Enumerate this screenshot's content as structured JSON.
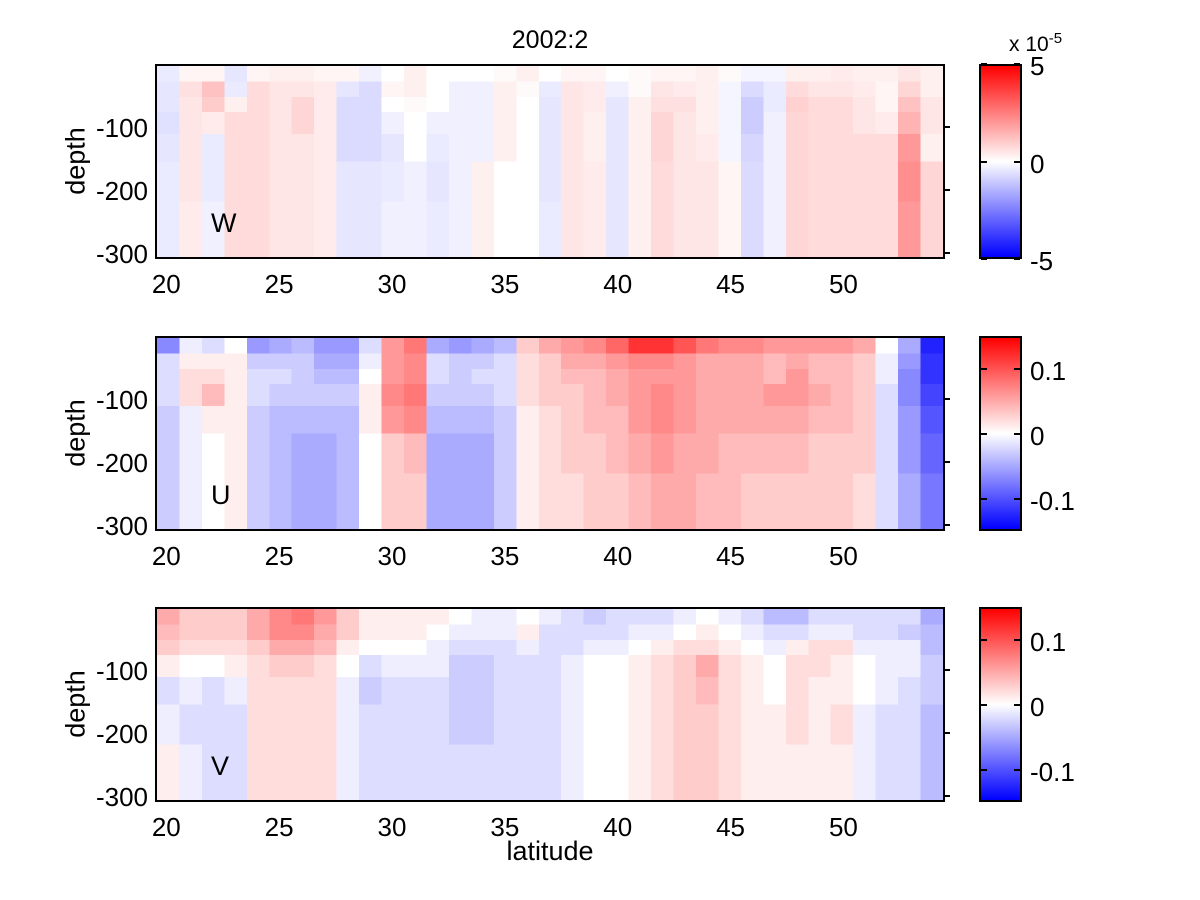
{
  "figure": {
    "title": "2002:2",
    "xlabel": "latitude",
    "ylabel": "depth",
    "background": "#ffffff",
    "axis_color": "#000000",
    "x_tick_labels": [
      "20",
      "25",
      "30",
      "35",
      "40",
      "45",
      "50"
    ],
    "x_tick_values": [
      20,
      25,
      30,
      35,
      40,
      45,
      50
    ],
    "y_tick_labels": [
      "-100",
      "-200",
      "-300"
    ],
    "y_tick_values": [
      -100,
      -200,
      -300
    ]
  },
  "colormap": {
    "max_color": "#ff0000",
    "mid_color": "#ffffff",
    "min_color": "#0000ff"
  },
  "chart_data": [
    {
      "type": "heatmap",
      "label": "W",
      "units_scale": "1e-5",
      "vmax": 5,
      "xlim": [
        19.5,
        54.5
      ],
      "ylim": [
        -310,
        0
      ],
      "lat": [
        20,
        21,
        22,
        23,
        24,
        25,
        26,
        27,
        28,
        29,
        30,
        31,
        32,
        33,
        34,
        35,
        36,
        37,
        38,
        39,
        40,
        41,
        42,
        43,
        44,
        45,
        46,
        47,
        48,
        49,
        50,
        51,
        52,
        53,
        54
      ],
      "depth_edges": [
        0,
        -25,
        -50,
        -75,
        -110,
        -155,
        -220,
        -310
      ],
      "colorbar": {
        "ticks": [
          {
            "label": "5",
            "value": 5
          },
          {
            "label": "0",
            "value": 0
          },
          {
            "label": "-5",
            "value": -5
          }
        ],
        "exponent_prefix": "x 10",
        "exponent_sup": "-5"
      },
      "columns_note": "columns[i] = values for lat[i], surface row first, units of 1e-5",
      "columns": [
        [
          -0.4,
          -0.5,
          -0.5,
          -0.6,
          -0.5,
          -0.4,
          -0.4
        ],
        [
          0.2,
          0.6,
          0.5,
          0.5,
          0.5,
          0.5,
          0.4
        ],
        [
          0.2,
          1.2,
          1.0,
          0.4,
          -0.4,
          -0.4,
          -0.3
        ],
        [
          -0.5,
          -0.4,
          0.3,
          0.7,
          0.7,
          0.7,
          0.7
        ],
        [
          0.2,
          0.7,
          0.7,
          0.7,
          0.7,
          0.7,
          0.7
        ],
        [
          0.3,
          0.5,
          0.5,
          0.5,
          0.5,
          0.5,
          0.5
        ],
        [
          0.3,
          0.5,
          0.8,
          0.8,
          0.5,
          0.5,
          0.5
        ],
        [
          0.2,
          0.4,
          0.4,
          0.4,
          0.4,
          0.4,
          0.4
        ],
        [
          0.2,
          -0.5,
          -0.7,
          -0.7,
          -0.7,
          -0.5,
          -0.5
        ],
        [
          -0.3,
          -0.7,
          -0.7,
          -0.7,
          -0.7,
          -0.5,
          -0.5
        ],
        [
          0.0,
          0.2,
          0.0,
          -0.3,
          -0.5,
          -0.4,
          -0.3
        ],
        [
          0.3,
          0.3,
          0.1,
          0.0,
          0.0,
          -0.3,
          -0.3
        ],
        [
          0.0,
          0.0,
          0.0,
          -0.3,
          -0.4,
          -0.5,
          -0.4
        ],
        [
          0.0,
          -0.3,
          -0.3,
          -0.3,
          -0.3,
          -0.3,
          -0.3
        ],
        [
          0.0,
          -0.3,
          -0.3,
          -0.3,
          -0.3,
          0.3,
          0.3
        ],
        [
          0.1,
          0.3,
          0.3,
          0.3,
          0.3,
          0.0,
          0.0
        ],
        [
          0.3,
          0.1,
          0.0,
          0.0,
          0.0,
          0.0,
          0.0
        ],
        [
          0.0,
          -0.4,
          -0.5,
          -0.5,
          -0.5,
          -0.5,
          -0.4
        ],
        [
          0.2,
          0.5,
          0.5,
          0.5,
          0.5,
          0.5,
          0.5
        ],
        [
          0.2,
          0.4,
          0.4,
          0.3,
          0.3,
          0.4,
          0.4
        ],
        [
          0.0,
          -0.3,
          -0.5,
          -0.5,
          -0.5,
          -0.5,
          -0.5
        ],
        [
          0.1,
          0.1,
          0.3,
          0.3,
          0.3,
          0.3,
          0.3
        ],
        [
          0.2,
          0.5,
          0.6,
          0.8,
          0.8,
          0.7,
          0.7
        ],
        [
          0.2,
          0.4,
          0.6,
          0.5,
          0.5,
          0.5,
          0.5
        ],
        [
          0.3,
          0.3,
          0.3,
          0.3,
          0.4,
          0.5,
          0.5
        ],
        [
          0.1,
          -0.2,
          -0.2,
          -0.2,
          -0.2,
          0.2,
          0.2
        ],
        [
          -0.2,
          -0.7,
          -1.0,
          -1.0,
          -0.8,
          -0.7,
          -0.7
        ],
        [
          -0.2,
          -0.4,
          -0.4,
          -0.3,
          -0.3,
          -0.3,
          -0.3
        ],
        [
          0.3,
          0.7,
          0.9,
          0.8,
          0.8,
          0.8,
          0.8
        ],
        [
          0.3,
          0.5,
          0.7,
          0.7,
          0.7,
          0.7,
          0.7
        ],
        [
          0.4,
          0.5,
          0.7,
          0.7,
          0.7,
          0.7,
          0.7
        ],
        [
          0.3,
          0.4,
          0.5,
          0.5,
          0.7,
          0.7,
          0.7
        ],
        [
          0.3,
          0.2,
          0.2,
          0.4,
          0.7,
          0.7,
          0.7
        ],
        [
          0.5,
          0.8,
          1.2,
          1.5,
          2.0,
          2.2,
          2.0
        ],
        [
          0.3,
          0.3,
          0.5,
          0.5,
          0.3,
          0.8,
          0.8
        ]
      ]
    },
    {
      "type": "heatmap",
      "label": "U",
      "units_scale": "1",
      "vmax": 0.15,
      "xlim": [
        19.5,
        54.5
      ],
      "ylim": [
        -310,
        0
      ],
      "lat": [
        20,
        21,
        22,
        23,
        24,
        25,
        26,
        27,
        28,
        29,
        30,
        31,
        32,
        33,
        34,
        35,
        36,
        37,
        38,
        39,
        40,
        41,
        42,
        43,
        44,
        45,
        46,
        47,
        48,
        49,
        50,
        51,
        52,
        53,
        54
      ],
      "depth_edges": [
        0,
        -25,
        -50,
        -75,
        -110,
        -155,
        -220,
        -310
      ],
      "colorbar": {
        "ticks": [
          {
            "label": "0.1",
            "value": 0.1
          },
          {
            "label": "0",
            "value": 0
          },
          {
            "label": "-0.1",
            "value": -0.1
          }
        ]
      },
      "columns_note": "columns[i] = values for lat[i], surface row first, m/s",
      "columns": [
        [
          -0.07,
          -0.02,
          -0.02,
          -0.02,
          -0.03,
          -0.03,
          -0.03
        ],
        [
          -0.01,
          0.01,
          0.02,
          0.02,
          -0.01,
          -0.01,
          -0.01
        ],
        [
          -0.02,
          0.01,
          0.02,
          0.04,
          0.01,
          0.0,
          0.0
        ],
        [
          0.0,
          0.01,
          0.01,
          0.01,
          0.01,
          0.01,
          0.01
        ],
        [
          -0.06,
          -0.03,
          -0.02,
          -0.02,
          -0.03,
          -0.03,
          -0.03
        ],
        [
          -0.05,
          -0.03,
          -0.02,
          -0.03,
          -0.04,
          -0.04,
          -0.04
        ],
        [
          -0.04,
          -0.03,
          -0.03,
          -0.03,
          -0.04,
          -0.05,
          -0.05
        ],
        [
          -0.06,
          -0.05,
          -0.04,
          -0.03,
          -0.04,
          -0.05,
          -0.05
        ],
        [
          -0.06,
          -0.05,
          -0.04,
          -0.03,
          -0.04,
          -0.04,
          -0.04
        ],
        [
          -0.02,
          -0.01,
          0.0,
          0.01,
          0.01,
          0.0,
          0.0
        ],
        [
          0.06,
          0.06,
          0.06,
          0.07,
          0.06,
          0.03,
          0.03
        ],
        [
          0.08,
          0.07,
          0.07,
          0.08,
          0.07,
          0.04,
          0.03
        ],
        [
          -0.05,
          -0.02,
          -0.02,
          -0.03,
          -0.04,
          -0.05,
          -0.05
        ],
        [
          -0.06,
          -0.03,
          -0.03,
          -0.03,
          -0.04,
          -0.05,
          -0.05
        ],
        [
          -0.05,
          -0.03,
          -0.02,
          -0.03,
          -0.04,
          -0.05,
          -0.05
        ],
        [
          -0.04,
          -0.02,
          -0.02,
          -0.02,
          -0.03,
          -0.03,
          -0.03
        ],
        [
          0.03,
          0.02,
          0.02,
          0.02,
          0.01,
          0.01,
          0.01
        ],
        [
          0.05,
          0.03,
          0.03,
          0.03,
          0.02,
          0.02,
          0.02
        ],
        [
          0.06,
          0.05,
          0.04,
          0.03,
          0.03,
          0.03,
          0.02
        ],
        [
          0.07,
          0.05,
          0.04,
          0.04,
          0.04,
          0.03,
          0.03
        ],
        [
          0.09,
          0.06,
          0.05,
          0.05,
          0.04,
          0.04,
          0.03
        ],
        [
          0.12,
          0.07,
          0.06,
          0.06,
          0.06,
          0.05,
          0.04
        ],
        [
          0.12,
          0.07,
          0.06,
          0.07,
          0.07,
          0.06,
          0.05
        ],
        [
          0.1,
          0.06,
          0.06,
          0.06,
          0.06,
          0.05,
          0.05
        ],
        [
          0.08,
          0.05,
          0.05,
          0.05,
          0.05,
          0.05,
          0.04
        ],
        [
          0.07,
          0.05,
          0.05,
          0.05,
          0.05,
          0.04,
          0.04
        ],
        [
          0.07,
          0.05,
          0.05,
          0.05,
          0.05,
          0.04,
          0.03
        ],
        [
          0.06,
          0.04,
          0.04,
          0.06,
          0.05,
          0.04,
          0.03
        ],
        [
          0.06,
          0.05,
          0.06,
          0.06,
          0.05,
          0.04,
          0.03
        ],
        [
          0.06,
          0.04,
          0.04,
          0.05,
          0.04,
          0.03,
          0.03
        ],
        [
          0.06,
          0.04,
          0.04,
          0.04,
          0.04,
          0.03,
          0.03
        ],
        [
          0.05,
          0.03,
          0.03,
          0.03,
          0.03,
          0.03,
          0.02
        ],
        [
          0.0,
          -0.01,
          -0.01,
          -0.02,
          -0.02,
          -0.02,
          -0.02
        ],
        [
          -0.05,
          -0.06,
          -0.07,
          -0.07,
          -0.06,
          -0.06,
          -0.05
        ],
        [
          -0.13,
          -0.12,
          -0.12,
          -0.11,
          -0.1,
          -0.09,
          -0.08
        ]
      ]
    },
    {
      "type": "heatmap",
      "label": "V",
      "units_scale": "1",
      "vmax": 0.15,
      "xlim": [
        19.5,
        54.5
      ],
      "ylim": [
        -310,
        0
      ],
      "lat": [
        20,
        21,
        22,
        23,
        24,
        25,
        26,
        27,
        28,
        29,
        30,
        31,
        32,
        33,
        34,
        35,
        36,
        37,
        38,
        39,
        40,
        41,
        42,
        43,
        44,
        45,
        46,
        47,
        48,
        49,
        50,
        51,
        52,
        53,
        54
      ],
      "depth_edges": [
        0,
        -25,
        -50,
        -75,
        -110,
        -155,
        -220,
        -310
      ],
      "colorbar": {
        "ticks": [
          {
            "label": "0.1",
            "value": 0.1
          },
          {
            "label": "0",
            "value": 0
          },
          {
            "label": "-0.1",
            "value": -0.1
          }
        ]
      },
      "columns_note": "columns[i] = values for lat[i], surface row first, m/s",
      "columns": [
        [
          0.05,
          0.04,
          0.03,
          0.01,
          -0.02,
          -0.01,
          0.01
        ],
        [
          0.03,
          0.03,
          0.02,
          0.0,
          -0.01,
          -0.02,
          -0.01
        ],
        [
          0.03,
          0.03,
          0.02,
          0.0,
          -0.02,
          -0.02,
          -0.02
        ],
        [
          0.03,
          0.03,
          0.02,
          0.01,
          -0.01,
          -0.02,
          -0.02
        ],
        [
          0.05,
          0.05,
          0.03,
          0.02,
          0.02,
          0.02,
          0.02
        ],
        [
          0.07,
          0.07,
          0.05,
          0.03,
          0.02,
          0.02,
          0.02
        ],
        [
          0.08,
          0.07,
          0.05,
          0.03,
          0.02,
          0.02,
          0.02
        ],
        [
          0.06,
          0.05,
          0.04,
          0.02,
          0.02,
          0.02,
          0.02
        ],
        [
          0.03,
          0.03,
          0.01,
          0.0,
          -0.01,
          -0.01,
          -0.01
        ],
        [
          0.01,
          0.01,
          0.0,
          -0.02,
          -0.03,
          -0.02,
          -0.02
        ],
        [
          0.01,
          0.01,
          0.0,
          -0.01,
          -0.02,
          -0.02,
          -0.02
        ],
        [
          0.01,
          0.01,
          0.0,
          -0.01,
          -0.02,
          -0.02,
          -0.02
        ],
        [
          0.01,
          0.0,
          -0.01,
          -0.01,
          -0.02,
          -0.02,
          -0.02
        ],
        [
          0.0,
          -0.01,
          -0.02,
          -0.03,
          -0.03,
          -0.03,
          -0.02
        ],
        [
          -0.01,
          -0.01,
          -0.02,
          -0.03,
          -0.03,
          -0.03,
          -0.02
        ],
        [
          -0.01,
          -0.01,
          -0.02,
          -0.02,
          -0.02,
          -0.02,
          -0.02
        ],
        [
          0.0,
          0.01,
          -0.01,
          -0.02,
          -0.02,
          -0.02,
          -0.02
        ],
        [
          -0.01,
          -0.02,
          -0.02,
          -0.02,
          -0.02,
          -0.02,
          -0.02
        ],
        [
          -0.02,
          -0.02,
          -0.02,
          -0.01,
          -0.01,
          -0.01,
          -0.01
        ],
        [
          -0.03,
          -0.02,
          -0.01,
          0.0,
          0.0,
          0.0,
          0.0
        ],
        [
          -0.02,
          -0.02,
          -0.01,
          0.0,
          0.0,
          0.0,
          0.0
        ],
        [
          -0.02,
          -0.01,
          0.0,
          0.01,
          0.01,
          0.01,
          0.01
        ],
        [
          -0.02,
          -0.01,
          0.01,
          0.02,
          0.02,
          0.02,
          0.02
        ],
        [
          -0.01,
          0.0,
          0.02,
          0.03,
          0.03,
          0.03,
          0.03
        ],
        [
          0.0,
          0.01,
          0.02,
          0.05,
          0.04,
          0.03,
          0.03
        ],
        [
          -0.01,
          0.0,
          0.01,
          0.02,
          0.02,
          0.02,
          0.02
        ],
        [
          -0.02,
          -0.01,
          0.0,
          0.01,
          0.01,
          0.01,
          0.01
        ],
        [
          -0.04,
          -0.02,
          -0.01,
          0.0,
          0.0,
          0.01,
          0.01
        ],
        [
          -0.04,
          -0.02,
          0.01,
          0.02,
          0.02,
          0.02,
          0.01
        ],
        [
          -0.02,
          -0.01,
          0.02,
          0.02,
          0.01,
          0.01,
          0.01
        ],
        [
          -0.02,
          -0.01,
          0.02,
          0.01,
          0.01,
          0.02,
          0.01
        ],
        [
          -0.02,
          -0.02,
          -0.01,
          0.0,
          0.0,
          -0.01,
          -0.01
        ],
        [
          -0.02,
          -0.02,
          -0.01,
          -0.01,
          -0.01,
          -0.02,
          -0.02
        ],
        [
          -0.02,
          -0.03,
          -0.01,
          -0.01,
          -0.02,
          -0.02,
          -0.02
        ],
        [
          -0.05,
          -0.04,
          -0.04,
          -0.03,
          -0.03,
          -0.04,
          -0.04
        ]
      ]
    }
  ]
}
